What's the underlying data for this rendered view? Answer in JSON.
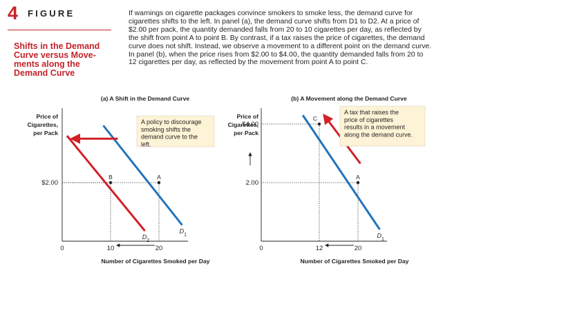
{
  "figure": {
    "number": "4",
    "word": "FIGURE",
    "title": "Shifts in the Demand Curve versus Move-ments along the Demand Curve",
    "caption": "If warnings on cigarette packages convince smokers to smoke less, the demand curve for cigarettes shifts to the left. In panel (a), the demand curve shifts from D1 to D2. At a price of $2.00 per pack, the quantity demanded falls from 20 to 10 cigarettes per day, as reflected by the shift from point A to point B. By contrast, if a tax raises the price of cigarettes, the demand curve does not shift. Instead, we observe a movement to a different point on the demand curve. In panel (b), when the price rises from $2.00 to $4.00, the quantity demanded falls from 20 to 12 cigarettes per day, as reflected by the movement from point A to point C."
  },
  "colors": {
    "accent": "#c4232b",
    "d1": "#2173bb",
    "d2": "#d02129",
    "callout": "#fdf3d6"
  },
  "chart_data": [
    {
      "type": "line",
      "title": "(a) A Shift in the Demand Curve",
      "ylabel": "Price of Cigarettes, per Pack",
      "xlabel": "Number of Cigarettes Smoked per Day",
      "xlim": [
        0,
        26
      ],
      "ylim": [
        0,
        4.5
      ],
      "x_ticks": [
        {
          "x": 0,
          "label": "0"
        },
        {
          "x": 10,
          "label": "10"
        },
        {
          "x": 20,
          "label": "20"
        }
      ],
      "y_ticks": [
        {
          "y": 2,
          "label": "$2.00"
        }
      ],
      "series": [
        {
          "name": "D1",
          "color": "#2173bb",
          "x": [
            8.5,
            24.8
          ],
          "y": [
            3.95,
            0.55
          ]
        },
        {
          "name": "D2",
          "color": "#d02129",
          "x": [
            1.0,
            17.1
          ],
          "y": [
            3.6,
            0.35
          ]
        }
      ],
      "points": [
        {
          "label": "A",
          "x": 20,
          "y": 2
        },
        {
          "label": "B",
          "x": 10,
          "y": 2
        }
      ],
      "shift_arrow": {
        "from": [
          11.5,
          3.5
        ],
        "to": [
          2.0,
          3.5
        ]
      },
      "quantity_arrow": {
        "from": [
          20,
          0
        ],
        "to": [
          10,
          0
        ]
      },
      "annotation": "A policy to discourage smoking shifts the demand curve to the left."
    },
    {
      "type": "line",
      "title": "(b) A Movement along the Demand Curve",
      "ylabel": "Price of Cigarettes, per Pack",
      "xlabel": "Number of Cigarettes Smoked per Day",
      "xlim": [
        0,
        26
      ],
      "ylim": [
        0,
        4.5
      ],
      "x_ticks": [
        {
          "x": 0,
          "label": "0"
        },
        {
          "x": 12,
          "label": "12"
        },
        {
          "x": 20,
          "label": "20"
        }
      ],
      "y_ticks": [
        {
          "y": 2,
          "label": "2.00"
        },
        {
          "y": 4,
          "label": "$4.00"
        }
      ],
      "series": [
        {
          "name": "D1",
          "color": "#2173bb",
          "x": [
            8.6,
            24.5
          ],
          "y": [
            4.3,
            0.4
          ]
        }
      ],
      "points": [
        {
          "label": "A",
          "x": 20,
          "y": 2
        },
        {
          "label": "C",
          "x": 12,
          "y": 4
        }
      ],
      "movement_arrow": {
        "from": [
          20.5,
          2.65
        ],
        "to": [
          13.0,
          4.3
        ]
      },
      "quantity_arrow": {
        "from": [
          20,
          0
        ],
        "to": [
          12,
          0
        ]
      },
      "annotation": "A tax that raises the price of cigarettes results in a movement along the demand curve."
    }
  ]
}
